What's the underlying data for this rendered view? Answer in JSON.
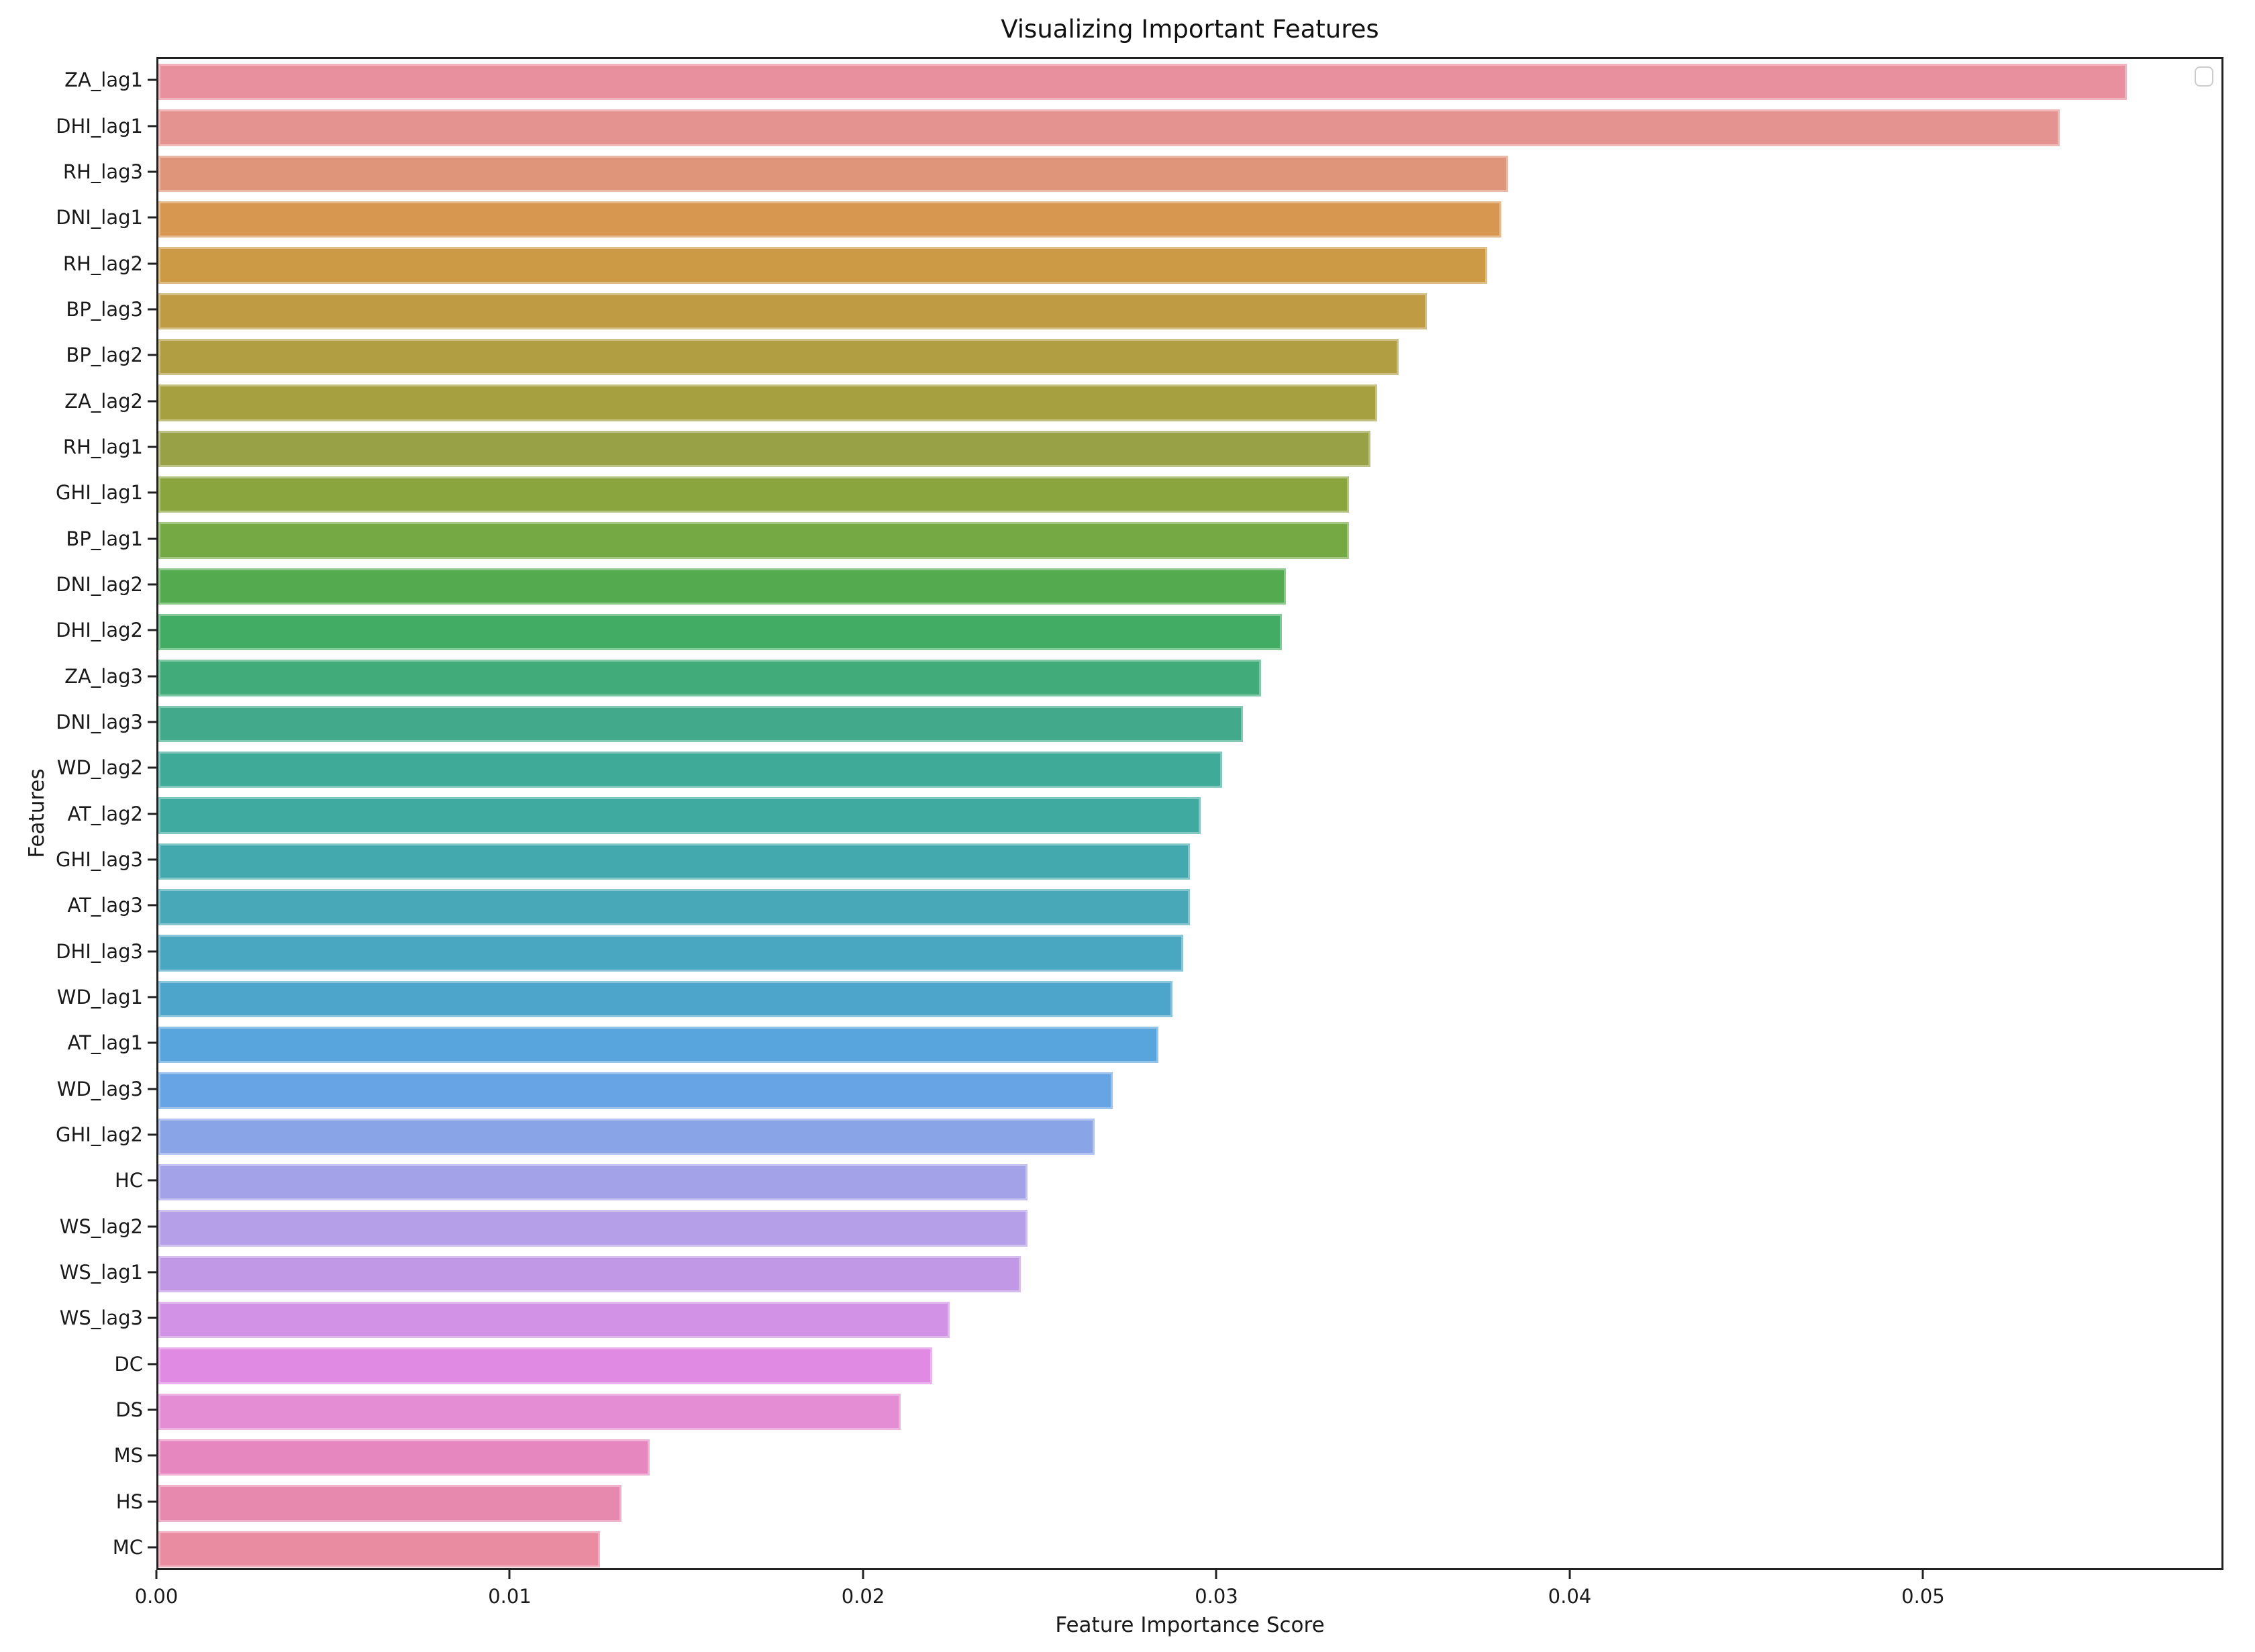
{
  "chart_data": {
    "type": "bar",
    "orientation": "horizontal",
    "title": "Visualizing Important Features",
    "xlabel": "Feature Importance Score",
    "ylabel": "Features",
    "xlim": [
      0,
      0.0585
    ],
    "grid": false,
    "legend": {
      "visible": true,
      "position": "upper right",
      "entries": []
    },
    "x_ticks": {
      "labels": [
        "0.00",
        "0.01",
        "0.02",
        "0.03",
        "0.04",
        "0.05"
      ],
      "values": [
        0.0,
        0.01,
        0.02,
        0.03,
        0.04,
        0.05
      ]
    },
    "categories": [
      "ZA_lag1",
      "DHI_lag1",
      "RH_lag3",
      "DNI_lag1",
      "RH_lag2",
      "BP_lag3",
      "BP_lag2",
      "ZA_lag2",
      "RH_lag1",
      "GHI_lag1",
      "BP_lag1",
      "DNI_lag2",
      "DHI_lag2",
      "ZA_lag3",
      "DNI_lag3",
      "WD_lag2",
      "AT_lag2",
      "GHI_lag3",
      "AT_lag3",
      "DHI_lag3",
      "WD_lag1",
      "AT_lag1",
      "WD_lag3",
      "GHI_lag2",
      "HC",
      "WS_lag2",
      "WS_lag1",
      "WS_lag3",
      "DC",
      "DS",
      "MS",
      "HS",
      "MC"
    ],
    "values": [
      0.0557,
      0.0538,
      0.0382,
      0.038,
      0.0376,
      0.0359,
      0.0351,
      0.0345,
      0.0343,
      0.0337,
      0.0337,
      0.0319,
      0.0318,
      0.0312,
      0.0307,
      0.0301,
      0.0295,
      0.0292,
      0.0292,
      0.029,
      0.0287,
      0.0283,
      0.027,
      0.0265,
      0.0246,
      0.0246,
      0.0244,
      0.0224,
      0.0219,
      0.021,
      0.0139,
      0.0131,
      0.0125
    ],
    "colors": [
      "#e9909f",
      "#e49390",
      "#df957a",
      "#d89750",
      "#cc9a45",
      "#bf9c43",
      "#b29e42",
      "#a7a040",
      "#99a147",
      "#8aa53e",
      "#74a943",
      "#54ab4f",
      "#42ac64",
      "#41ab79",
      "#42aa8b",
      "#40aa98",
      "#3faaa0",
      "#44a9ae",
      "#48a8b8",
      "#4aa7c1",
      "#4da5cc",
      "#57a5dc",
      "#67a4e5",
      "#8aa5e7",
      "#a3a2e8",
      "#b49fe8",
      "#c098e6",
      "#d292e5",
      "#e08ae3",
      "#e48cd4",
      "#e688bf",
      "#e789ae",
      "#e98ba1"
    ]
  }
}
